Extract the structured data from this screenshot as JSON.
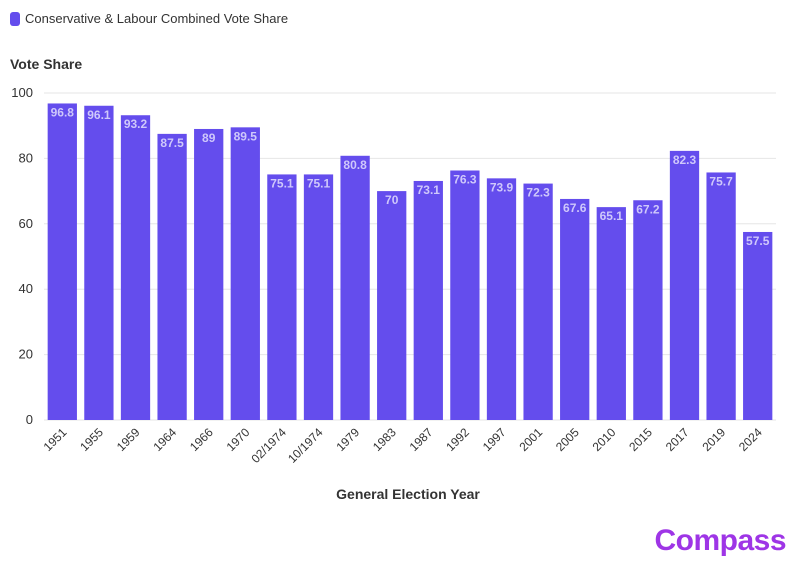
{
  "colors": {
    "bar": "#644ded",
    "value_label": "#cfc8fb",
    "grid": "#e6e6e6",
    "axis_text": "#333333",
    "brand": "#9e35e6"
  },
  "brand": {
    "name": "Compass"
  },
  "chart_data": {
    "type": "bar",
    "title": "",
    "xlabel": "General Election Year",
    "ylabel": "Vote Share",
    "legend_position": "top-left",
    "grid": true,
    "ylim": [
      0,
      100
    ],
    "yticks": [
      0,
      20,
      40,
      60,
      80,
      100
    ],
    "categories": [
      "1951",
      "1955",
      "1959",
      "1964",
      "1966",
      "1970",
      "02/1974",
      "10/1974",
      "1979",
      "1983",
      "1987",
      "1992",
      "1997",
      "2001",
      "2005",
      "2010",
      "2015",
      "2017",
      "2019",
      "2024"
    ],
    "series": [
      {
        "name": "Conservative & Labour Combined Vote Share",
        "values": [
          96.8,
          96.1,
          93.2,
          87.5,
          89,
          89.5,
          75.1,
          75.1,
          80.8,
          70,
          73.1,
          76.3,
          73.9,
          72.3,
          67.6,
          65.1,
          67.2,
          82.3,
          75.7,
          57.5
        ]
      }
    ]
  }
}
